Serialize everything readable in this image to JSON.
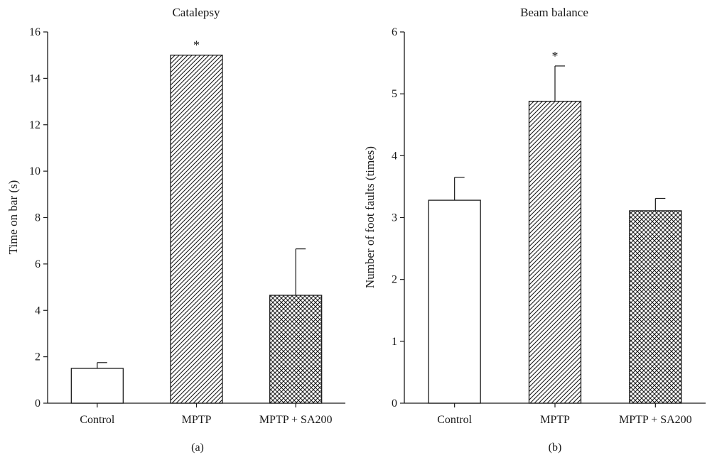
{
  "chart_data": [
    {
      "type": "bar",
      "title": "Catalepsy",
      "panel_label": "(a)",
      "xlabel": "",
      "ylabel": "Time on bar (s)",
      "categories": [
        "Control",
        "MPTP",
        "MPTP + SA200"
      ],
      "values": [
        1.5,
        15.0,
        4.65
      ],
      "errors": [
        0.25,
        0.0,
        2.0
      ],
      "significance": [
        "",
        "*",
        ""
      ],
      "patterns": [
        "none",
        "diagonal",
        "crosshatch"
      ],
      "ylim": [
        0,
        16
      ],
      "yticks": [
        0,
        2,
        4,
        6,
        8,
        10,
        12,
        14,
        16
      ],
      "grid": false,
      "legend": "none"
    },
    {
      "type": "bar",
      "title": "Beam balance",
      "panel_label": "(b)",
      "xlabel": "",
      "ylabel": "Number of foot faults (times)",
      "categories": [
        "Control",
        "MPTP",
        "MPTP + SA200"
      ],
      "values": [
        3.28,
        4.88,
        3.11
      ],
      "errors": [
        0.37,
        0.57,
        0.2
      ],
      "significance": [
        "",
        "*",
        ""
      ],
      "patterns": [
        "none",
        "diagonal",
        "crosshatch"
      ],
      "ylim": [
        0,
        6
      ],
      "yticks": [
        0,
        1,
        2,
        3,
        4,
        5,
        6
      ],
      "grid": false,
      "legend": "none"
    }
  ],
  "colors": {
    "ink": "#1a1a1a",
    "bar_fill": "#ffffff"
  }
}
